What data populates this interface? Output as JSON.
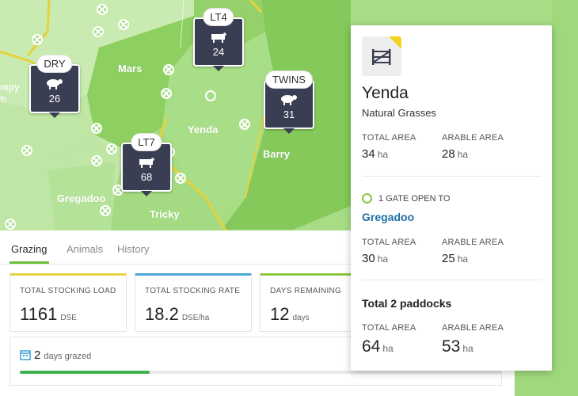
{
  "map": {
    "paddocks": [
      {
        "name": "Mars"
      },
      {
        "name": "Yenda"
      },
      {
        "name": "Barry"
      },
      {
        "name": "Gregadoo"
      },
      {
        "name": "Tricky"
      },
      {
        "name": "mpy"
      },
      {
        "name": "9)"
      }
    ],
    "mobs": [
      {
        "tag": "LT4",
        "count": "24",
        "animal": "cow-icon"
      },
      {
        "tag": "DRY",
        "count": "26",
        "animal": "sheep-icon"
      },
      {
        "tag": "TWINS",
        "count": "31",
        "animal": "sheep-icon"
      },
      {
        "tag": "LT7",
        "count": "68",
        "animal": "cow-icon"
      }
    ]
  },
  "tabs": [
    {
      "label": "Grazing",
      "active": true
    },
    {
      "label": "Animals",
      "active": false
    },
    {
      "label": "History",
      "active": false
    }
  ],
  "stats": [
    {
      "label": "TOTAL STOCKING LOAD",
      "value": "1161",
      "unit": "DSE",
      "accent": "#e8d33f"
    },
    {
      "label": "TOTAL STOCKING RATE",
      "value": "18.2",
      "unit": "DSE/ha",
      "accent": "#4aa8d8"
    },
    {
      "label": "DAYS REMAINING",
      "value": "12",
      "unit": "days",
      "accent": "#8cc63f"
    }
  ],
  "grazed": {
    "value": "2",
    "label": "days grazed",
    "progress_fraction": 0.27
  },
  "panel": {
    "title": "Yenda",
    "subtitle": "Natural Grasses",
    "total_area_label": "TOTAL AREA",
    "total_area": "34",
    "arable_area_label": "ARABLE AREA",
    "arable_area": "28",
    "unit": "ha",
    "gate_text": "1 GATE OPEN TO",
    "gate_link": "Gregadoo",
    "neighbor_total_label": "TOTAL AREA",
    "neighbor_total": "30",
    "neighbor_arable_label": "ARABLE AREA",
    "neighbor_arable": "25",
    "summary_title": "Total 2 paddocks",
    "summary_total_label": "TOTAL AREA",
    "summary_total": "64",
    "summary_arable_label": "ARABLE AREA",
    "summary_arable": "53"
  },
  "colors": {
    "accent_green": "#6cbf3a",
    "link_blue": "#1d6fa5",
    "marker_bg": "#3a3e52"
  }
}
